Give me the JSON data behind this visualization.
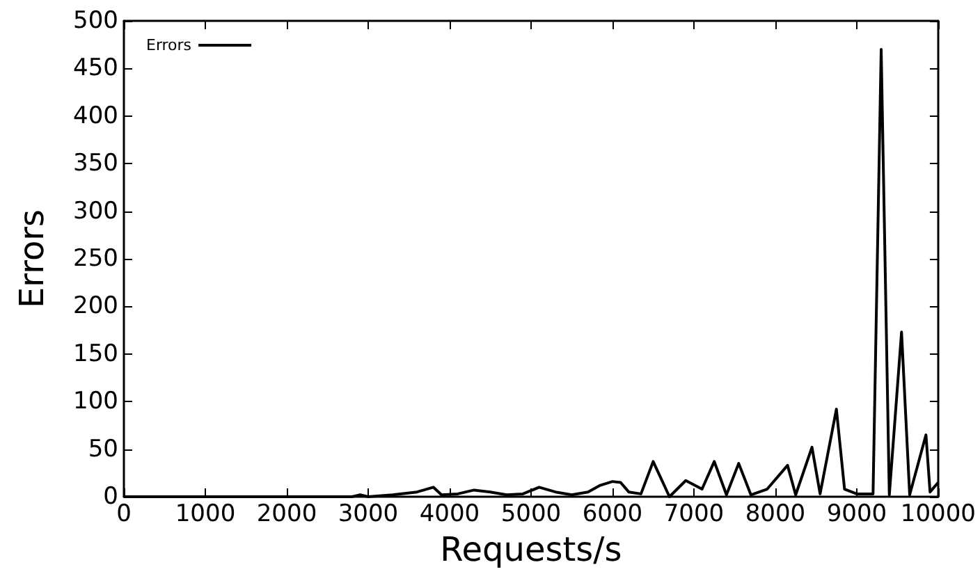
{
  "chart_data": {
    "type": "line",
    "xlabel": "Requests/s",
    "ylabel": "Errors",
    "x": [
      0,
      1000,
      2000,
      2800,
      2900,
      3000,
      3300,
      3600,
      3800,
      3900,
      4100,
      4300,
      4500,
      4700,
      4900,
      5100,
      5300,
      5500,
      5700,
      5850,
      6000,
      6100,
      6200,
      6350,
      6500,
      6700,
      6900,
      7100,
      7250,
      7400,
      7550,
      7700,
      7900,
      8150,
      8250,
      8450,
      8550,
      8750,
      8850,
      9000,
      9200,
      9300,
      9400,
      9550,
      9650,
      9850,
      9900,
      10000
    ],
    "series": [
      {
        "name": "Errors",
        "color": "#000000",
        "values": [
          0,
          0,
          0,
          0,
          2,
          0,
          2,
          5,
          10,
          2,
          3,
          7,
          5,
          2,
          3,
          10,
          5,
          2,
          5,
          12,
          16,
          15,
          5,
          3,
          37,
          0,
          17,
          8,
          37,
          2,
          35,
          2,
          8,
          33,
          2,
          52,
          3,
          92,
          8,
          3,
          3,
          470,
          2,
          173,
          2,
          65,
          5,
          15
        ]
      }
    ],
    "xlim": [
      0,
      10000
    ],
    "xticks": [
      0,
      1000,
      2000,
      3000,
      4000,
      5000,
      6000,
      7000,
      8000,
      9000,
      10000
    ],
    "ylim": [
      0,
      500
    ],
    "yticks": [
      0,
      50,
      100,
      150,
      200,
      250,
      300,
      350,
      400,
      450,
      500
    ],
    "grid": false,
    "legend": "top left",
    "marker": "none",
    "line_style": "solid"
  }
}
